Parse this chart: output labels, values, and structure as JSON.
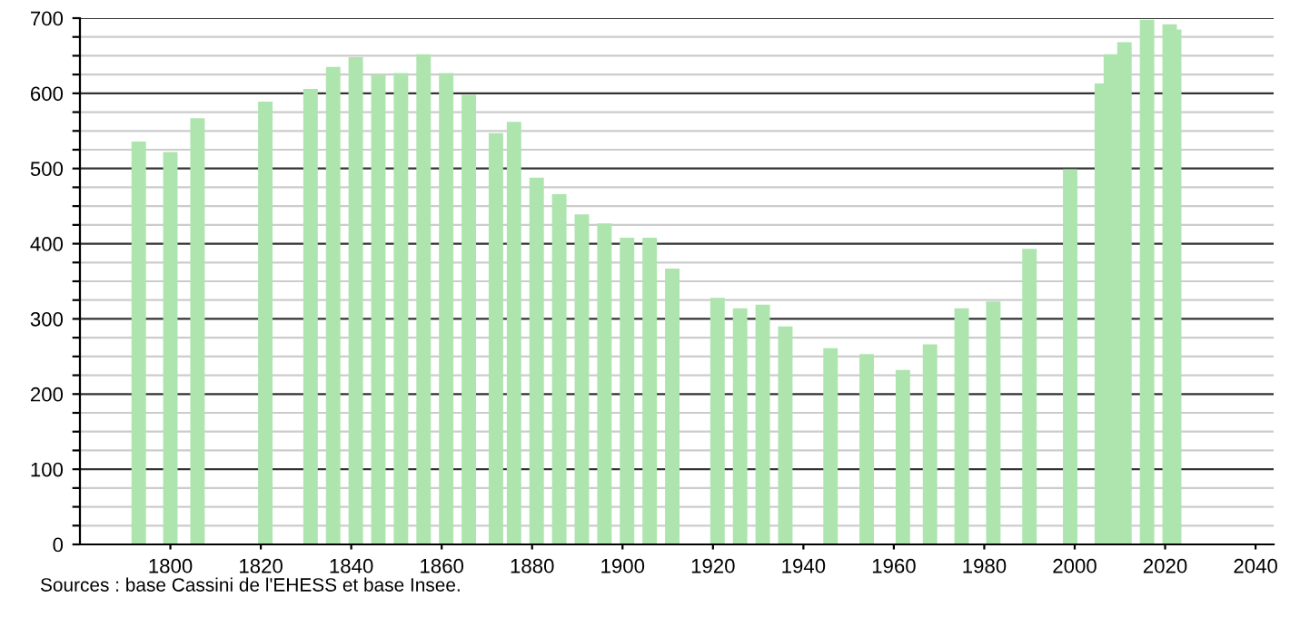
{
  "chart_data": {
    "type": "bar",
    "x": [
      1793,
      1800,
      1806,
      1821,
      1831,
      1836,
      1841,
      1846,
      1851,
      1856,
      1861,
      1866,
      1872,
      1876,
      1881,
      1886,
      1891,
      1896,
      1901,
      1906,
      1911,
      1921,
      1926,
      1931,
      1936,
      1946,
      1954,
      1962,
      1968,
      1975,
      1982,
      1990,
      1999,
      2006,
      2008,
      2011,
      2016,
      2021,
      2022
    ],
    "values": [
      536,
      522,
      567,
      589,
      606,
      635,
      648,
      625,
      627,
      652,
      627,
      598,
      547,
      562,
      488,
      466,
      439,
      427,
      408,
      408,
      367,
      328,
      314,
      319,
      290,
      261,
      253,
      232,
      266,
      314,
      323,
      393,
      499,
      613,
      652,
      668,
      698,
      692,
      685
    ],
    "color": "#aee5ae",
    "xlim": [
      1780,
      2044
    ],
    "xticks": [
      1800,
      1820,
      1840,
      1860,
      1880,
      1900,
      1920,
      1940,
      1960,
      1980,
      2000,
      2020,
      2040
    ],
    "ylim": [
      0,
      700
    ],
    "yticks": [
      0,
      {
        "value": 25,
        "label": null
      },
      {
        "value": 50,
        "label": null
      },
      {
        "value": 75,
        "label": null
      },
      100,
      {
        "value": 125,
        "label": null
      },
      {
        "value": 150,
        "label": null
      },
      {
        "value": 175,
        "label": null
      },
      200,
      {
        "value": 225,
        "label": null
      },
      {
        "value": 250,
        "label": null
      },
      {
        "value": 275,
        "label": null
      },
      300,
      {
        "value": 325,
        "label": null
      },
      {
        "value": 350,
        "label": null
      },
      {
        "value": 375,
        "label": null
      },
      400,
      {
        "value": 425,
        "label": null
      },
      {
        "value": 450,
        "label": null
      },
      {
        "value": 475,
        "label": null
      },
      500,
      {
        "value": 525,
        "label": null
      },
      {
        "value": 550,
        "label": null
      },
      {
        "value": 575,
        "label": null
      },
      600,
      {
        "value": 625,
        "label": null
      },
      {
        "value": 650,
        "label": null
      },
      {
        "value": 675,
        "label": null
      },
      700
    ],
    "grid": "y",
    "annotations": [
      "Sources : base Cassini de l'EHESS et base Insee."
    ]
  }
}
